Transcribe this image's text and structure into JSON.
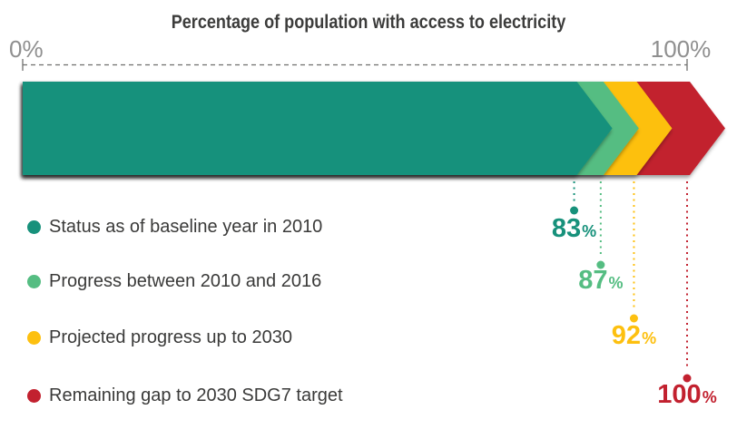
{
  "title": "Percentage of population with access to electricity",
  "axis": {
    "min": 0,
    "max": 100,
    "min_label": "0%",
    "max_label": "100%"
  },
  "chart_data": {
    "type": "bar",
    "variant": "layered-chevron-progress",
    "title": "Percentage of population with access to electricity",
    "xlim": [
      0,
      100
    ],
    "unit": "%",
    "grid": false,
    "legend_position": "bottom-left",
    "series": [
      {
        "name": "Status as of baseline year in 2010",
        "value": 83,
        "display": "83%",
        "color": "#17917B"
      },
      {
        "name": "Progress between 2010 and 2016",
        "value": 87,
        "display": "87%",
        "color": "#55BD82"
      },
      {
        "name": "Projected progress up to 2030",
        "value": 92,
        "display": "92%",
        "color": "#FDC010"
      },
      {
        "name": "Remaining gap to 2030 SDG7 target",
        "value": 100,
        "display": "100%",
        "color": "#C2212F"
      }
    ]
  },
  "colors": {
    "title_text": "#3C3C3B",
    "axis_label_text": "#8F8F8F",
    "axis_line": "#6F6F6E",
    "legend_text": "#3A3A39",
    "background": "#FFFFFF"
  }
}
